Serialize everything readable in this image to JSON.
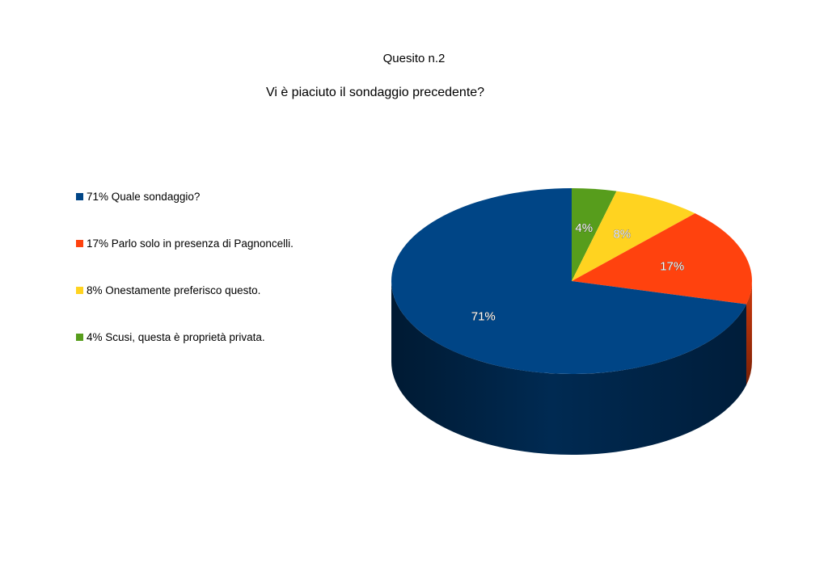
{
  "chart_data": {
    "type": "pie",
    "title": "Quesito n.2",
    "subtitle": "Vi è piaciuto il sondaggio precedente?",
    "legend_position": "left",
    "slices": [
      {
        "label": "71% Quale sondaggio?",
        "value": 71,
        "data_label": "71%",
        "color": "#004586"
      },
      {
        "label": "17% Parlo solo in presenza di Pagnoncelli.",
        "value": 17,
        "data_label": "17%",
        "color": "#ff420e"
      },
      {
        "label": "8% Onestamente preferisco questo.",
        "value": 8,
        "data_label": "8%",
        "color": "#ffd320"
      },
      {
        "label": "4% Scusi, questa è proprietà privata.",
        "value": 4,
        "data_label": "4%",
        "color": "#579d1c"
      }
    ]
  }
}
